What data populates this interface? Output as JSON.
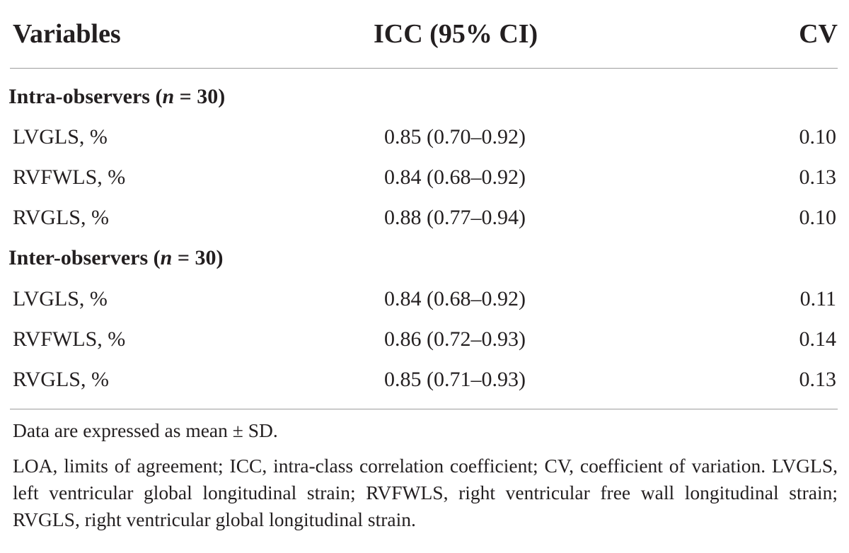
{
  "table": {
    "headers": {
      "variables": "Variables",
      "icc": "ICC (95% CI)",
      "cv": "CV"
    },
    "sections": [
      {
        "title_prefix": "Intra-observers (",
        "title_n": "n",
        "title_suffix": " = 30)",
        "rows": [
          {
            "variable": "LVGLS, %",
            "icc": "0.85 (0.70–0.92)",
            "cv": "0.10"
          },
          {
            "variable": "RVFWLS, %",
            "icc": "0.84 (0.68–0.92)",
            "cv": "0.13"
          },
          {
            "variable": "RVGLS, %",
            "icc": "0.88 (0.77–0.94)",
            "cv": "0.10"
          }
        ]
      },
      {
        "title_prefix": "Inter-observers (",
        "title_n": "n",
        "title_suffix": " = 30)",
        "rows": [
          {
            "variable": "LVGLS, %",
            "icc": "0.84 (0.68–0.92)",
            "cv": "0.11"
          },
          {
            "variable": "RVFWLS, %",
            "icc": "0.86 (0.72–0.93)",
            "cv": "0.14"
          },
          {
            "variable": "RVGLS, %",
            "icc": "0.85 (0.71–0.93)",
            "cv": "0.13"
          }
        ]
      }
    ]
  },
  "footnotes": {
    "line1": "Data are expressed as mean ± SD.",
    "line2": "LOA, limits of agreement; ICC, intra-class correlation coefficient; CV, coefficient of variation. LVGLS, left ventricular global longitudinal strain; RVFWLS, right ventricular free wall longitudinal strain; RVGLS, right ventricular global longitudinal strain."
  }
}
